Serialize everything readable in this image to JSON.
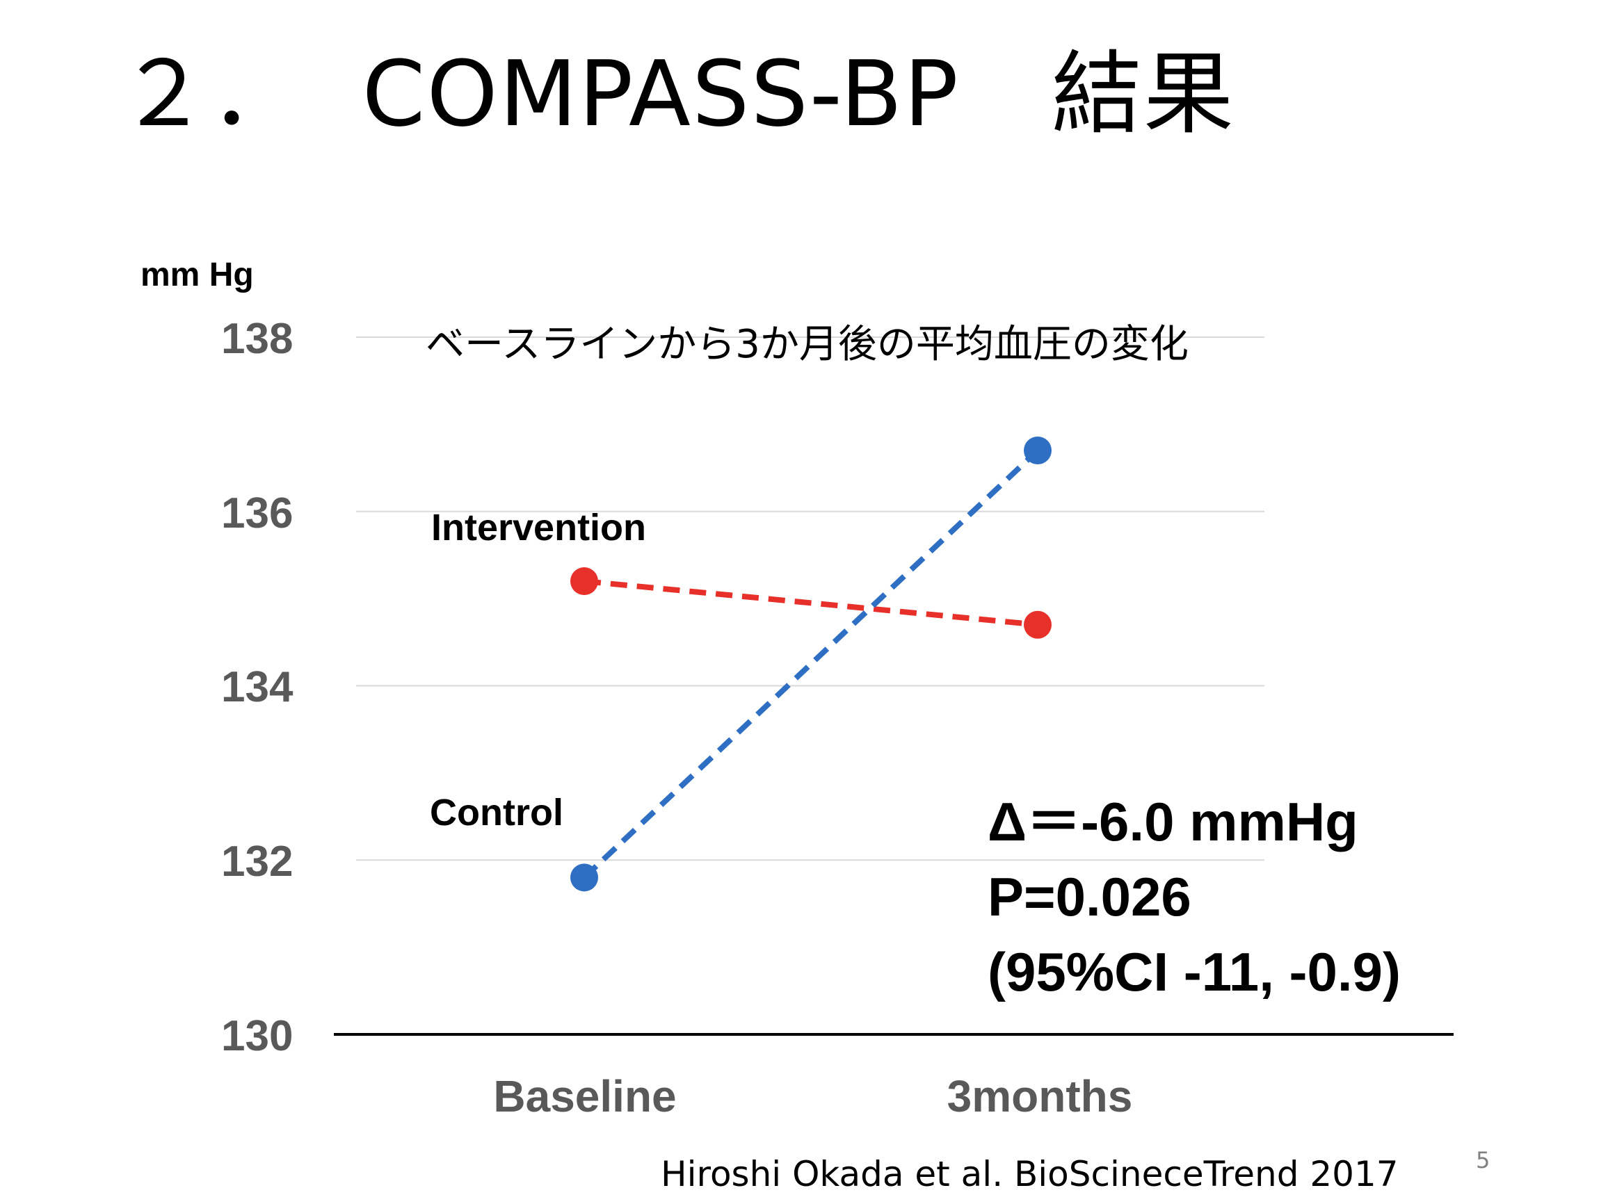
{
  "slide": {
    "title": "２．  COMPASS-BP　結果",
    "citation": "Hiroshi Okada et al. BioScineceTrend 2017",
    "page_number": "5"
  },
  "annotations": {
    "delta": "Δ＝-6.0 mmHg",
    "p_value": "P=0.026",
    "ci": "(95%CI -11, -0.9)"
  },
  "chart_data": {
    "type": "line",
    "title": "ベースラインから3か月後の平均血圧の変化",
    "ylabel": "mm Hg",
    "xlabel": "",
    "categories": [
      "Baseline",
      "3months"
    ],
    "ylim": [
      130,
      138
    ],
    "yticks": [
      "130",
      "132",
      "134",
      "136",
      "138"
    ],
    "grid": true,
    "series": [
      {
        "name": "Intervention",
        "values": [
          135.2,
          134.7
        ],
        "color": "#e8302a",
        "style": "dashed"
      },
      {
        "name": "Control",
        "values": [
          131.8,
          136.7
        ],
        "color": "#2e6fc4",
        "style": "dashed"
      }
    ]
  }
}
